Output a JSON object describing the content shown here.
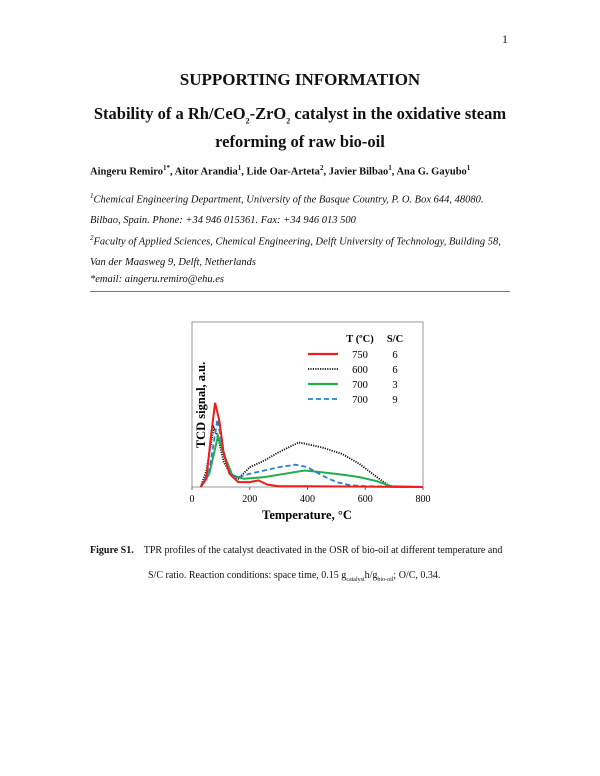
{
  "page_number": "1",
  "title": "SUPPORTING INFORMATION",
  "subtitle_line1_pre": "Stability of a Rh/CeO",
  "subtitle_line1_mid": "-ZrO",
  "subtitle_line1_post": " catalyst in the oxidative steam",
  "subtitle_sub": "2",
  "subtitle_line2": "reforming of raw bio-oil",
  "authors": [
    {
      "name": "Aingeru Remiro",
      "sup": "1*"
    },
    {
      "name": ", Aitor Arandia",
      "sup": "1"
    },
    {
      "name": ", Lide Oar-Arteta",
      "sup": "2"
    },
    {
      "name": ", Javier Bilbao",
      "sup": "1"
    },
    {
      "name": ", Ana G. Gayubo",
      "sup": "1"
    }
  ],
  "affiliation1_sup": "1",
  "affiliation1": "Chemical Engineering Department, University of the Basque Country, P. O. Box 644, 48080. Bilbao, Spain. Phone: +34 946 015361. Fax: +34 946 013 500",
  "affiliation2_sup": "2",
  "affiliation2": "Faculty of Applied Sciences, Chemical Engineering, Delft University of Technology, Building 58, Van der Maasweg 9, Delft, Netherlands",
  "email": "*email: aingeru.remiro@ehu.es",
  "caption": {
    "label": "Figure S1.",
    "line1": "TPR profiles of the catalyst deactivated in the OSR of bio-oil at different temperature and",
    "line2_pre": "S/C ratio. Reaction conditions: space time, 0.15 g",
    "sub1": "catalyst",
    "mid": "h/g",
    "sub2": "bio-oil",
    "line2_post": "; O/C, 0.34."
  },
  "chart_data": {
    "type": "line",
    "xlabel": "Temperature, °C",
    "ylabel": "TCD signal, a.u.",
    "xlim": [
      0,
      800
    ],
    "ylim": [
      0,
      1
    ],
    "xticks": [
      "0",
      "200",
      "400",
      "600",
      "800"
    ],
    "grid": false,
    "legend": {
      "placement": "top-right",
      "headers": [
        "T (ºC)",
        "S/C"
      ]
    },
    "series": [
      {
        "t": "750",
        "sc": "6",
        "color": "#ee1c1c",
        "style": "solid",
        "x": [
          30,
          50,
          65,
          80,
          95,
          110,
          130,
          160,
          200,
          230,
          260,
          300,
          400,
          800
        ],
        "y": [
          0,
          0.05,
          0.3,
          0.51,
          0.4,
          0.2,
          0.08,
          0.03,
          0.03,
          0.04,
          0.015,
          0.005,
          0.005,
          0
        ]
      },
      {
        "t": "600",
        "sc": "6",
        "color": "#111111",
        "style": "dotted",
        "x": [
          30,
          50,
          75,
          90,
          110,
          140,
          160,
          200,
          250,
          300,
          370,
          450,
          520,
          580,
          640,
          680,
          700,
          800
        ],
        "y": [
          0,
          0.1,
          0.36,
          0.3,
          0.15,
          0.06,
          0.05,
          0.12,
          0.16,
          0.21,
          0.27,
          0.24,
          0.2,
          0.14,
          0.06,
          0.01,
          0,
          0
        ]
      },
      {
        "t": "700",
        "sc": "3",
        "color": "#1fae4a",
        "style": "solid",
        "x": [
          30,
          60,
          90,
          110,
          140,
          180,
          250,
          320,
          390,
          450,
          520,
          580,
          640,
          690,
          800
        ],
        "y": [
          0,
          0.08,
          0.31,
          0.2,
          0.07,
          0.05,
          0.06,
          0.08,
          0.1,
          0.09,
          0.075,
          0.06,
          0.035,
          0.005,
          0
        ]
      },
      {
        "t": "700",
        "sc": "9",
        "color": "#2a7fd4",
        "style": "dashed",
        "x": [
          30,
          60,
          88,
          105,
          130,
          160,
          200,
          250,
          300,
          360,
          400,
          450,
          500,
          550,
          600,
          800
        ],
        "y": [
          0,
          0.1,
          0.41,
          0.25,
          0.08,
          0.06,
          0.08,
          0.1,
          0.12,
          0.135,
          0.12,
          0.07,
          0.03,
          0.01,
          0.005,
          0
        ]
      }
    ]
  }
}
